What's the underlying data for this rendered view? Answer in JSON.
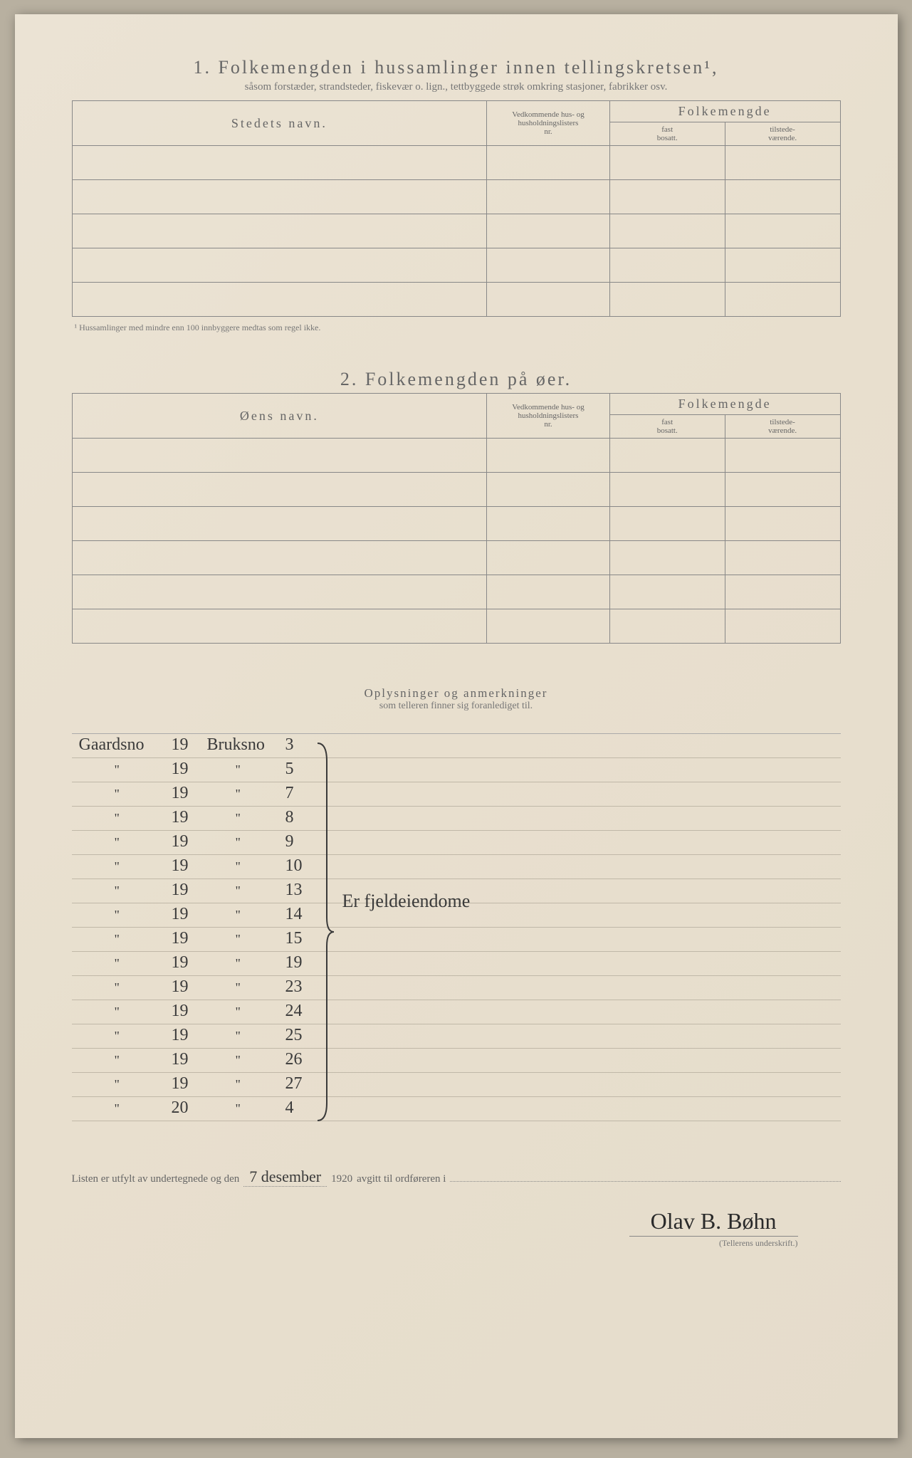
{
  "section1": {
    "number": "1.",
    "title": "Folkemengden i hussamlinger innen tellingskretsen¹,",
    "subtitle": "såsom forstæder, strandsteder, fiskevær o. lign., tettbyggede strøk omkring stasjoner, fabrikker osv.",
    "col_name": "Stedets navn.",
    "col_nr_l1": "Vedkommende hus- og",
    "col_nr_l2": "husholdningslisters",
    "col_nr_l3": "nr.",
    "col_folk": "Folkemengde",
    "col_fast_l1": "fast",
    "col_fast_l2": "bosatt.",
    "col_til_l1": "tilstede-",
    "col_til_l2": "værende.",
    "footnote": "¹ Hussamlinger med mindre enn 100 innbyggere medtas som regel ikke."
  },
  "section2": {
    "number": "2.",
    "title": "Folkemengden på øer.",
    "col_name": "Øens navn."
  },
  "oplys": {
    "title": "Oplysninger og anmerkninger",
    "subtitle": "som telleren finner sig foranlediget til."
  },
  "handwriting": {
    "header_gaard": "Gaardsno",
    "header_bruk": "Bruksno",
    "ditto": "\"",
    "rows": [
      {
        "g": "19",
        "b": "3"
      },
      {
        "g": "19",
        "b": "5"
      },
      {
        "g": "19",
        "b": "7"
      },
      {
        "g": "19",
        "b": "8"
      },
      {
        "g": "19",
        "b": "9"
      },
      {
        "g": "19",
        "b": "10"
      },
      {
        "g": "19",
        "b": "13"
      },
      {
        "g": "19",
        "b": "14"
      },
      {
        "g": "19",
        "b": "15"
      },
      {
        "g": "19",
        "b": "19"
      },
      {
        "g": "19",
        "b": "23"
      },
      {
        "g": "19",
        "b": "24"
      },
      {
        "g": "19",
        "b": "25"
      },
      {
        "g": "19",
        "b": "26"
      },
      {
        "g": "19",
        "b": "27"
      },
      {
        "g": "20",
        "b": "4"
      }
    ],
    "brace_label": "Er fjeldeiendome"
  },
  "footer": {
    "prefix": "Listen er utfylt av undertegnede og den",
    "date": "7 desember",
    "year": "1920",
    "suffix": "avgitt til ordføreren i",
    "signature": "Olav B. Bøhn",
    "sig_label": "(Tellerens underskrift.)"
  },
  "style": {
    "paper_bg": "#e8dfce",
    "text_color": "#666",
    "ink_color": "#3a3a3a",
    "border_color": "#888"
  }
}
